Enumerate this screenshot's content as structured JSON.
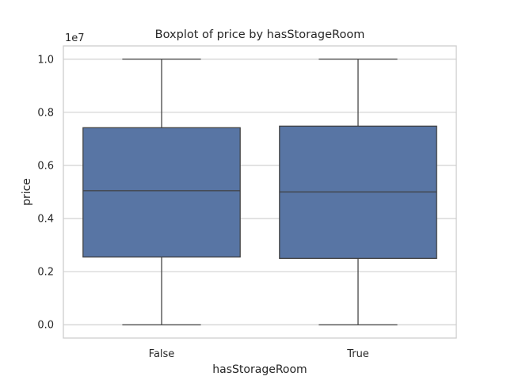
{
  "chart_data": {
    "type": "boxplot",
    "title": "Boxplot of price by hasStorageRoom",
    "xlabel": "hasStorageRoom",
    "ylabel": "price",
    "y_offset_label": "1e7",
    "categories": [
      "False",
      "True"
    ],
    "y_ticks": [
      0.0,
      0.2,
      0.4,
      0.6,
      0.8,
      1.0
    ],
    "y_tick_labels": [
      "0.0",
      "0.2",
      "0.4",
      "0.6",
      "0.8",
      "1.0"
    ],
    "ylim": [
      -0.05,
      1.05
    ],
    "y_scale_factor": 10000000,
    "boxes": [
      {
        "category": "False",
        "min": 0.0,
        "q1": 0.255,
        "median": 0.505,
        "q3": 0.742,
        "max": 1.0
      },
      {
        "category": "True",
        "min": 0.0,
        "q1": 0.25,
        "median": 0.5,
        "q3": 0.748,
        "max": 1.0
      }
    ],
    "box_color": "#5875a4",
    "line_color": "#3f3f3f",
    "grid": true,
    "grid_color": "#cccccc",
    "grid_axis": "y",
    "style": "seaborn-whitegrid"
  }
}
